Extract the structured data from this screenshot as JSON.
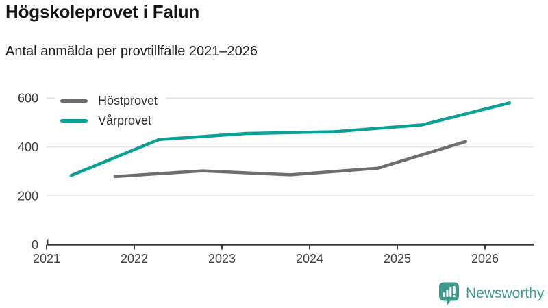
{
  "chart_data": {
    "type": "line",
    "title": "Högskoleprovet i Falun",
    "subtitle": "Antal anmälda per provtillfälle 2021–2026",
    "x_ticks": [
      "2021",
      "2022",
      "2023",
      "2024",
      "2025",
      "2026"
    ],
    "y_ticks": [
      0,
      200,
      400,
      600
    ],
    "xlim": [
      2021,
      2026.55
    ],
    "ylim": [
      0,
      637
    ],
    "grid": "horizontal-gridlines-at-200-400-600",
    "legend_position": "top-left-inside",
    "series": [
      {
        "name": "Höstprovet",
        "slug": "hostprovet",
        "color": "#6E6E6E",
        "x": [
          2021.78,
          2022.78,
          2023.78,
          2024.78,
          2025.78
        ],
        "values": [
          279,
          302,
          286,
          313,
          422
        ]
      },
      {
        "name": "Vårprovet",
        "slug": "varprovet",
        "color": "#0BA096",
        "x": [
          2021.28,
          2022.28,
          2023.28,
          2024.28,
          2025.28,
          2026.28
        ],
        "values": [
          283,
          430,
          455,
          462,
          490,
          580
        ]
      }
    ],
    "colors": {
      "grid": "#E3E3E3",
      "axis": "#3A3A3A",
      "tick_label": "#3D3D3D",
      "background": "#FFFFFF"
    }
  },
  "branding": {
    "name": "Newsworthy",
    "color": "#3E9A8C",
    "icon": "newsworthy-speech-bubble-bar-chart-icon"
  }
}
